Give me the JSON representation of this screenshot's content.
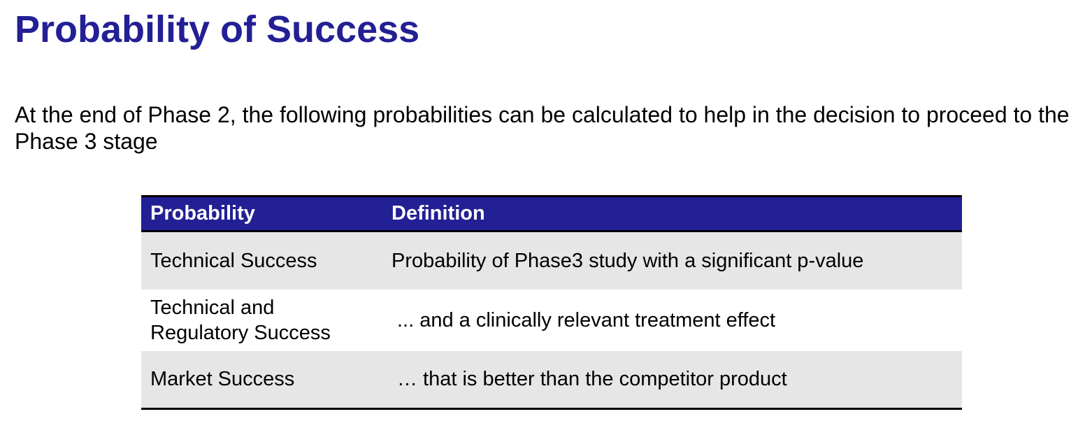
{
  "slide": {
    "title": "Probability of Success",
    "intro": "At the end of Phase 2, the following probabilities can be calculated to help in the decision to proceed to the Phase 3 stage"
  },
  "table": {
    "headers": [
      "Probability",
      "Definition"
    ],
    "rows": [
      {
        "probability": "Technical Success",
        "definition": "Probability of Phase3 study with a significant p-value"
      },
      {
        "probability": "Technical and Regulatory Success",
        "definition": "... and a clinically relevant treatment effect"
      },
      {
        "probability": "Market Success",
        "definition": "… that is better than the competitor product"
      }
    ]
  },
  "colors": {
    "title": "#231f94",
    "header_bg": "#231f94",
    "row_shade": "#e6e6e6"
  }
}
